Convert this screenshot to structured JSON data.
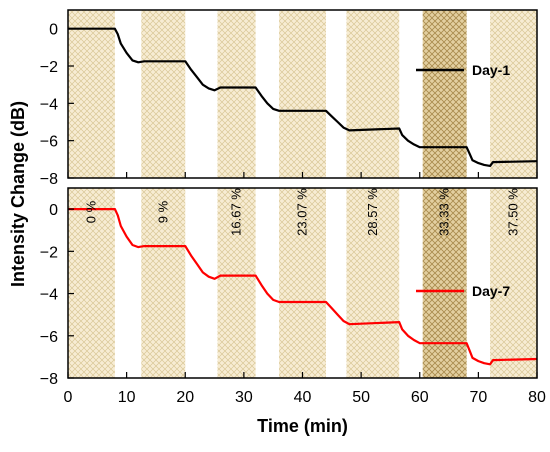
{
  "chart_data": {
    "type": "line",
    "xlabel": "Time (min)",
    "ylabel": "Intensity Change (dB)",
    "xlim": [
      0,
      80
    ],
    "ylim": [
      -8,
      1
    ],
    "x_ticks": [
      0,
      10,
      20,
      30,
      40,
      50,
      60,
      70,
      80
    ],
    "y_ticks": [
      0,
      -2,
      -4,
      -6,
      -8
    ],
    "y_tick_labels": [
      "0",
      "−2",
      "−4",
      "−6",
      "−8"
    ],
    "legend_placement": "right",
    "grid": false,
    "shaded_intervals": [
      {
        "x0": 0,
        "x1": 8,
        "label": "0 %"
      },
      {
        "x0": 12.5,
        "x1": 20,
        "label": "9 %"
      },
      {
        "x0": 25.5,
        "x1": 32,
        "label": "16.67 %"
      },
      {
        "x0": 36,
        "x1": 44,
        "label": "23.07 %"
      },
      {
        "x0": 47.5,
        "x1": 56.5,
        "label": "28.57 %"
      },
      {
        "x0": 60.5,
        "x1": 68,
        "label": "33.33 %"
      },
      {
        "x0": 72,
        "x1": 80,
        "label": "37.50 %"
      }
    ],
    "panels": [
      {
        "name": "Day-1",
        "color": "#000000",
        "x": [
          0,
          8,
          8.5,
          9,
          10,
          11,
          12,
          13,
          20,
          21,
          22,
          23,
          24,
          25,
          26,
          32,
          33,
          34,
          35,
          36,
          44,
          45,
          46,
          47,
          48,
          56.5,
          57,
          58,
          59,
          60,
          60.5,
          68,
          68.5,
          69,
          70,
          71,
          72,
          72.5,
          80
        ],
        "y": [
          0,
          0,
          -0.3,
          -0.8,
          -1.3,
          -1.7,
          -1.8,
          -1.75,
          -1.75,
          -2.2,
          -2.6,
          -3.0,
          -3.2,
          -3.3,
          -3.15,
          -3.15,
          -3.6,
          -4.0,
          -4.3,
          -4.4,
          -4.4,
          -4.7,
          -5.0,
          -5.3,
          -5.45,
          -5.35,
          -5.7,
          -6.0,
          -6.2,
          -6.35,
          -6.35,
          -6.35,
          -6.7,
          -7.05,
          -7.2,
          -7.3,
          -7.35,
          -7.15,
          -7.1
        ]
      },
      {
        "name": "Day-7",
        "color": "#ff0000",
        "x": [
          0,
          8,
          8.5,
          9,
          10,
          11,
          12,
          13,
          20,
          21,
          22,
          23,
          24,
          25,
          26,
          32,
          33,
          34,
          35,
          36,
          44,
          45,
          46,
          47,
          48,
          56.5,
          57,
          58,
          59,
          60,
          60.5,
          68,
          68.5,
          69,
          70,
          71,
          72,
          72.5,
          80
        ],
        "y": [
          0,
          0,
          -0.3,
          -0.8,
          -1.3,
          -1.7,
          -1.8,
          -1.75,
          -1.75,
          -2.2,
          -2.6,
          -3.0,
          -3.2,
          -3.3,
          -3.15,
          -3.15,
          -3.6,
          -4.0,
          -4.3,
          -4.4,
          -4.4,
          -4.7,
          -5.0,
          -5.3,
          -5.45,
          -5.35,
          -5.7,
          -6.0,
          -6.2,
          -6.35,
          -6.35,
          -6.35,
          -6.7,
          -7.05,
          -7.2,
          -7.3,
          -7.35,
          -7.15,
          -7.1
        ]
      }
    ]
  }
}
